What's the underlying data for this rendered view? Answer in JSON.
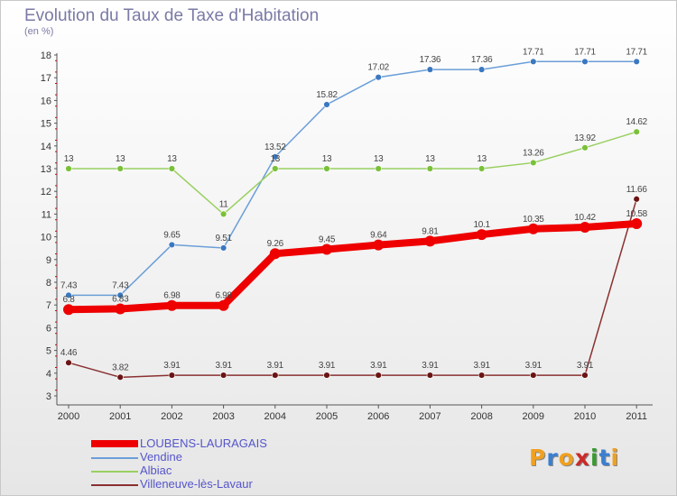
{
  "title": "Evolution du Taux de Taxe d'Habitation",
  "subtitle": "(en %)",
  "logo": {
    "text": "Proxiti",
    "colors": [
      "#f0a020",
      "#3a7fd0",
      "#f0a020",
      "#cc2a2a",
      "#3a9a30",
      "#3a7fd0",
      "#f0a020"
    ]
  },
  "chart_data": {
    "type": "line",
    "title": "Evolution du Taux de Taxe d'Habitation",
    "ylabel": "(en %)",
    "xlabel": "",
    "x": [
      "2000",
      "2001",
      "2002",
      "2003",
      "2004",
      "2005",
      "2006",
      "2007",
      "2008",
      "2009",
      "2010",
      "2011"
    ],
    "ylim": [
      3,
      18
    ],
    "yticks": [
      "3",
      "4",
      "5",
      "6",
      "7",
      "8",
      "9",
      "10",
      "11",
      "12",
      "13",
      "14",
      "15",
      "16",
      "17",
      "18"
    ],
    "grid": false,
    "legend_position": "bottom-left",
    "series": [
      {
        "name": "LOUBENS-LAURAGAIS",
        "color": "#ee0000",
        "thick": true,
        "values": [
          6.8,
          6.83,
          6.98,
          6.98,
          9.26,
          9.45,
          9.64,
          9.81,
          10.1,
          10.35,
          10.42,
          10.58
        ],
        "labels": [
          "6.8",
          "6.83",
          "6.98",
          "6.98",
          "9.26",
          "9.45",
          "9.64",
          "9.81",
          "10.1",
          "10.35",
          "10.42",
          "10.58"
        ]
      },
      {
        "name": "Vendine",
        "color": "#6a9ed8",
        "point": "#3a78c0",
        "values": [
          7.43,
          7.43,
          9.65,
          9.51,
          13.52,
          15.82,
          17.02,
          17.36,
          17.36,
          17.71,
          17.71,
          17.71
        ],
        "labels": [
          "7.43",
          "7.43",
          "9.65",
          "9.51",
          "13.52",
          "15.82",
          "17.02",
          "17.36",
          "17.36",
          "17.71",
          "17.71",
          "17.71"
        ]
      },
      {
        "name": "Albiac",
        "color": "#99d060",
        "point": "#7ac038",
        "values": [
          13,
          13,
          13,
          11,
          13,
          13,
          13,
          13,
          13,
          13.26,
          13.92,
          14.62
        ],
        "labels": [
          "13",
          "13",
          "13",
          "11",
          "13",
          "13",
          "13",
          "13",
          "13",
          "13.26",
          "13.92",
          "14.62"
        ]
      },
      {
        "name": "Villeneuve-lès-Lavaur",
        "color": "#8a3030",
        "point": "#6a1414",
        "values": [
          4.46,
          3.82,
          3.91,
          3.91,
          3.91,
          3.91,
          3.91,
          3.91,
          3.91,
          3.91,
          3.91,
          11.66
        ],
        "labels": [
          "4.46",
          "3.82",
          "3.91",
          "3.91",
          "3.91",
          "3.91",
          "3.91",
          "3.91",
          "3.91",
          "3.91",
          "3.91",
          "11.66"
        ]
      }
    ]
  }
}
